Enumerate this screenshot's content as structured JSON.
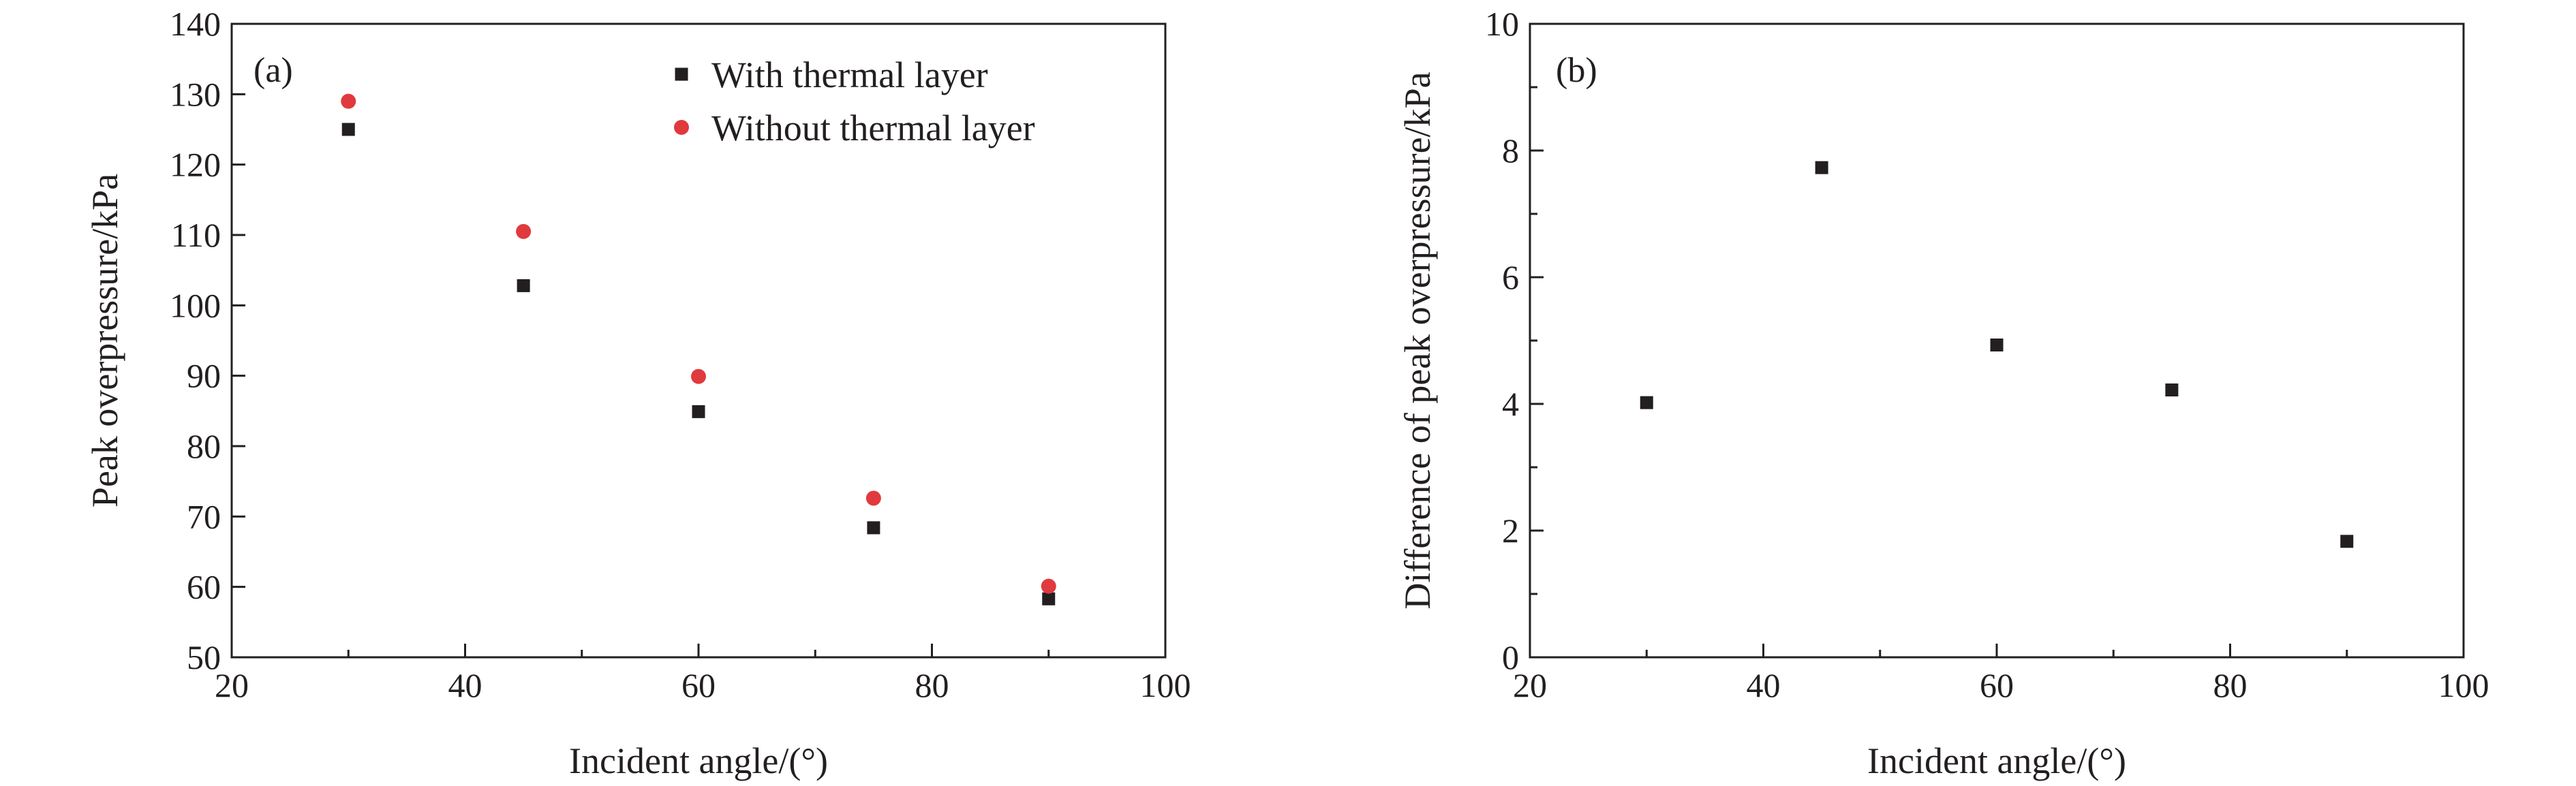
{
  "chart_data": [
    {
      "type": "scatter",
      "panel_label": "(a)",
      "xlabel": "Incident angle/(°)",
      "ylabel": "Peak overpressure/kPa",
      "xlim": [
        20,
        100
      ],
      "ylim": [
        50,
        140
      ],
      "x_major_ticks": [
        20,
        40,
        60,
        80,
        100
      ],
      "x_minor_ticks": [
        30,
        50,
        70,
        90
      ],
      "y_major_ticks": [
        50,
        60,
        70,
        80,
        90,
        100,
        110,
        120,
        130,
        140
      ],
      "legend_position": "top-right",
      "series": [
        {
          "name": "With thermal layer",
          "marker": "square",
          "color": "#231f20",
          "x": [
            30,
            45,
            60,
            75,
            90
          ],
          "y": [
            125.0,
            102.8,
            84.9,
            68.4,
            58.3
          ]
        },
        {
          "name": "Without thermal layer",
          "marker": "circle",
          "color": "#e03a3e",
          "x": [
            30,
            45,
            60,
            75,
            90
          ],
          "y": [
            129.0,
            110.5,
            89.9,
            72.6,
            60.1
          ]
        }
      ]
    },
    {
      "type": "scatter",
      "panel_label": "(b)",
      "xlabel": "Incident angle/(°)",
      "ylabel": "Difference of peak overpressure/kPa",
      "xlim": [
        20,
        100
      ],
      "ylim": [
        0,
        10
      ],
      "x_major_ticks": [
        20,
        40,
        60,
        80,
        100
      ],
      "x_minor_ticks": [
        30,
        50,
        70,
        90
      ],
      "y_major_ticks": [
        0,
        2,
        4,
        6,
        8,
        10
      ],
      "y_minor_ticks": [
        1,
        3,
        5,
        7,
        9
      ],
      "series": [
        {
          "marker": "square",
          "color": "#231f20",
          "x": [
            30,
            45,
            60,
            75,
            90
          ],
          "y": [
            4.02,
            7.73,
            4.93,
            4.22,
            1.83
          ]
        }
      ]
    }
  ]
}
